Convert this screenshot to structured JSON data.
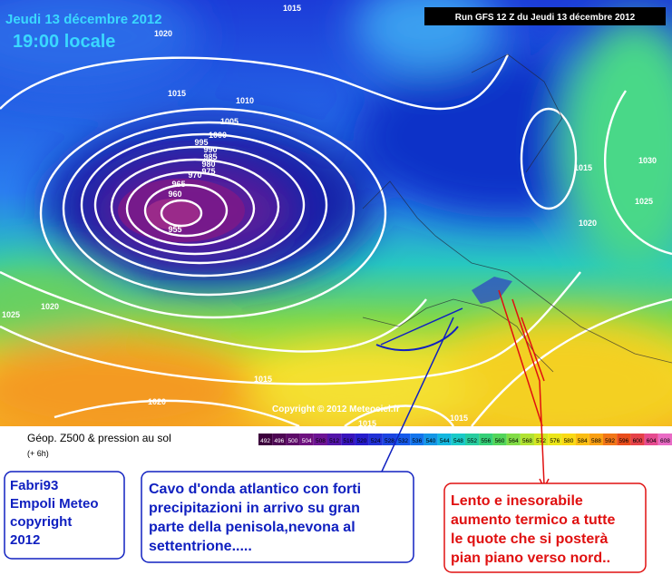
{
  "header": {
    "date": "Jeudi 13 décembre 2012",
    "time": "19:00 locale",
    "run": "Run GFS 12 Z du Jeudi 13 décembre 2012"
  },
  "map": {
    "copyright": "Copyright © 2012 Meteociel.fr",
    "isobar_labels": [
      "1015",
      "1020",
      "1015",
      "1010",
      "1005",
      "1000",
      "995",
      "990",
      "985",
      "980",
      "975",
      "970",
      "965",
      "960",
      "955",
      "1020",
      "1025",
      "1015",
      "1020",
      "1015",
      "1015",
      "1015",
      "1020",
      "1025",
      "1030"
    ]
  },
  "legend": {
    "title": "Géop. Z500 & pression au sol",
    "subtitle": "(+ 6h)",
    "scale": [
      "492",
      "496",
      "500",
      "504",
      "508",
      "512",
      "516",
      "520",
      "524",
      "528",
      "532",
      "536",
      "540",
      "544",
      "548",
      "552",
      "556",
      "560",
      "564",
      "568",
      "572",
      "576",
      "580",
      "584",
      "588",
      "592",
      "596",
      "600",
      "604",
      "608",
      "61"
    ]
  },
  "notes": {
    "author": [
      "Fabri93",
      "Empoli Meteo",
      "copyright",
      "2012"
    ],
    "blue": [
      "Cavo d'onda atlantico con forti",
      "precipitazioni in arrivo su gran",
      "parte della penisola,nevona al",
      "settentrione....."
    ],
    "red": [
      "Lento e inesorabile",
      "aumento termico a tutte",
      "le quote che si posterà",
      "pian piano verso nord.."
    ]
  }
}
